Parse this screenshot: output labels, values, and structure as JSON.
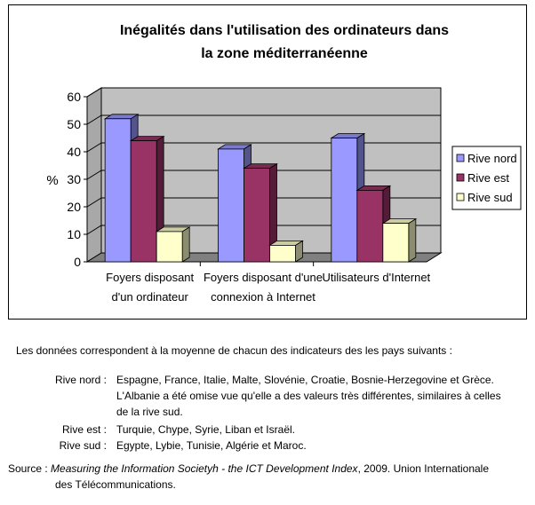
{
  "chart_data": {
    "type": "bar",
    "title_line1": "Inégalités dans l'utilisation des ordinateurs dans",
    "title_line2": "la zone méditerranéenne",
    "ylabel": "%",
    "ylim": [
      0,
      60
    ],
    "yticks": [
      "0",
      "10",
      "20",
      "30",
      "40",
      "50",
      "60"
    ],
    "categories": [
      [
        "Foyers disposant",
        "d'un ordinateur"
      ],
      [
        "Foyers disposant d'une",
        "connexion à Internet"
      ],
      [
        "Utilisateurs d'Internet"
      ]
    ],
    "series": [
      {
        "name": "Rive nord",
        "values": [
          52,
          41,
          45
        ]
      },
      {
        "name": "Rive est",
        "values": [
          44,
          34,
          26
        ]
      },
      {
        "name": "Rive sud",
        "values": [
          11,
          6,
          14
        ]
      }
    ],
    "grid": true,
    "legend": "right",
    "colors": {
      "rive_nord": "#9999ff",
      "rive_est": "#993366",
      "rive_sud": "#ffffcc",
      "plot_back": "#c0c0c0",
      "plot_floor": "#808080"
    }
  },
  "notes": {
    "intro": "Les données correspondent à la moyenne de chacun des indicateurs des les pays suivants :",
    "rows": [
      {
        "label": "Rive nord :",
        "lines": [
          "Espagne, France, Italie, Malte, Slovénie, Croatie, Bosnie-Herzegovine et Grèce.",
          "L'Albanie a été omise vue qu'elle a des valeurs très différentes, similaires à celles",
          "de la rive sud."
        ]
      },
      {
        "label": "Rive est :",
        "lines": [
          "Turquie, Chype, Syrie, Liban et Israël."
        ]
      },
      {
        "label": "Rive sud :",
        "lines": [
          "Egypte, Lybie, Tunisie, Algérie et Maroc."
        ]
      }
    ],
    "source_label": "Source :",
    "source_title": "Measuring the Information Societyh - the ICT Development Index",
    "source_rest": ", 2009. Union Internationale",
    "source_line2": "des Télécommunications."
  }
}
